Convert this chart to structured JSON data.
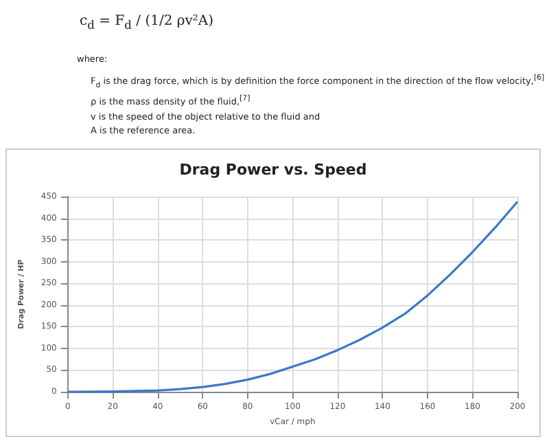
{
  "chart_data": {
    "type": "line",
    "title": "Drag Power vs. Speed",
    "xlabel": "vCar / mph",
    "ylabel": "Drag Power / HP",
    "annotations": [
      "c$_{d}$ = F$_{d}$ / (1/2 ρv²A)",
      "where:",
      "F$_{d}$ is the drag force, which is by definition the force component in the direction of the flow velocity,$^{[6]}$",
      "ρ is the mass density of the fluid,$^{[7]}$",
      "v is the speed of the object relative to the fluid and",
      "A is the reference area."
    ],
    "x": [
      0,
      20,
      40,
      50,
      60,
      70,
      80,
      90,
      100,
      110,
      120,
      130,
      140,
      150,
      160,
      170,
      180,
      190,
      200
    ],
    "series": [
      {
        "color": "#3a78c9",
        "values": [
          0,
          0.5,
          3,
          6,
          11,
          18,
          28,
          41,
          58,
          75,
          96,
          120,
          148,
          180,
          222,
          270,
          322,
          378,
          438
        ]
      }
    ],
    "xlim": [
      0,
      200
    ],
    "xticks": [
      0,
      20,
      40,
      60,
      80,
      100,
      120,
      140,
      160,
      180,
      200
    ],
    "ylim": [
      0,
      450
    ],
    "yticks": [
      0,
      50,
      100,
      150,
      200,
      250,
      300,
      350,
      400,
      450
    ],
    "grid": true,
    "marker": "none",
    "line_style": "solid"
  }
}
